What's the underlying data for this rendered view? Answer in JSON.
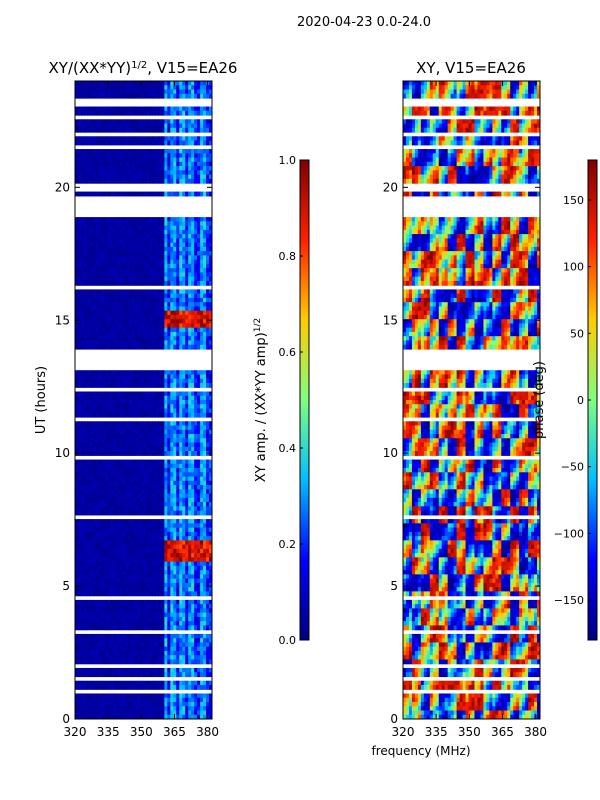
{
  "suptitle": "2020-04-23 0.0-24.0",
  "shared_xlabel": "frequency (MHz)",
  "colormap": [
    "#00007f",
    "#0000ff",
    "#00bfff",
    "#7fff7f",
    "#ffcc00",
    "#ff2000",
    "#7f0000"
  ],
  "chart_data": [
    {
      "type": "heatmap",
      "title": "XY/(XX*YY)",
      "title_sup": "1/2",
      "title_suffix": ", V15=EA26",
      "xlabel": "",
      "ylabel": "UT (hours)",
      "xlim": [
        320,
        382
      ],
      "ylim": [
        0,
        24
      ],
      "xticks": [
        "320",
        "335",
        "350",
        "365",
        "380"
      ],
      "xtick_values": [
        320,
        335,
        350,
        365,
        380
      ],
      "yticks": [
        "0",
        "5",
        "10",
        "15",
        "20"
      ],
      "ytick_values": [
        0,
        5,
        10,
        15,
        20
      ],
      "flagged_band_mhz": [
        320,
        360
      ],
      "bright_channels_mhz": [
        361,
        365,
        369,
        373,
        378
      ],
      "high_amplitude_hours": [
        6.3,
        15.0
      ],
      "colorbar": {
        "label": "XY amp. / (XX*YY amp)",
        "label_sup": "1/2",
        "range": [
          0.0,
          1.0
        ],
        "ticks": [
          "0.0",
          "0.2",
          "0.4",
          "0.6",
          "0.8",
          "1.0"
        ],
        "tick_values": [
          0.0,
          0.2,
          0.4,
          0.6,
          0.8,
          1.0
        ]
      }
    },
    {
      "type": "heatmap",
      "title": "XY, V15=EA26",
      "xlabel": "frequency (MHz)",
      "ylabel": "",
      "xlim": [
        320,
        382
      ],
      "ylim": [
        0,
        24
      ],
      "xticks": [
        "320",
        "335",
        "350",
        "365",
        "380"
      ],
      "xtick_values": [
        320,
        335,
        350,
        365,
        380
      ],
      "yticks": [
        "0",
        "5",
        "10",
        "15",
        "20"
      ],
      "ytick_values": [
        0,
        5,
        10,
        15,
        20
      ],
      "colorbar": {
        "label": "phase (deg)",
        "range": [
          -180,
          180
        ],
        "ticks": [
          "−150",
          "−100",
          "−50",
          "0",
          "50",
          "100",
          "150"
        ],
        "tick_values": [
          -150,
          -100,
          -50,
          0,
          50,
          100,
          150
        ]
      }
    }
  ],
  "flagged_gaps_hours": [
    [
      23.1,
      23.3
    ],
    [
      22.55,
      22.65
    ],
    [
      22.0,
      22.08
    ],
    [
      21.5,
      21.58
    ],
    [
      19.9,
      20.2
    ],
    [
      19.1,
      19.6
    ],
    [
      18.9,
      19.0
    ],
    [
      16.2,
      16.3
    ],
    [
      13.2,
      13.9
    ],
    [
      12.3,
      12.4
    ],
    [
      11.8,
      11.9
    ],
    [
      11.2,
      11.28
    ],
    [
      10.5,
      10.58
    ],
    [
      9.8,
      9.88
    ],
    [
      8.9,
      8.98
    ],
    [
      7.5,
      7.7
    ],
    [
      5.7,
      5.8
    ],
    [
      4.4,
      4.6
    ],
    [
      3.2,
      3.4
    ],
    [
      1.9,
      2.0
    ],
    [
      1.5,
      1.6
    ],
    [
      1.0,
      1.12
    ]
  ]
}
